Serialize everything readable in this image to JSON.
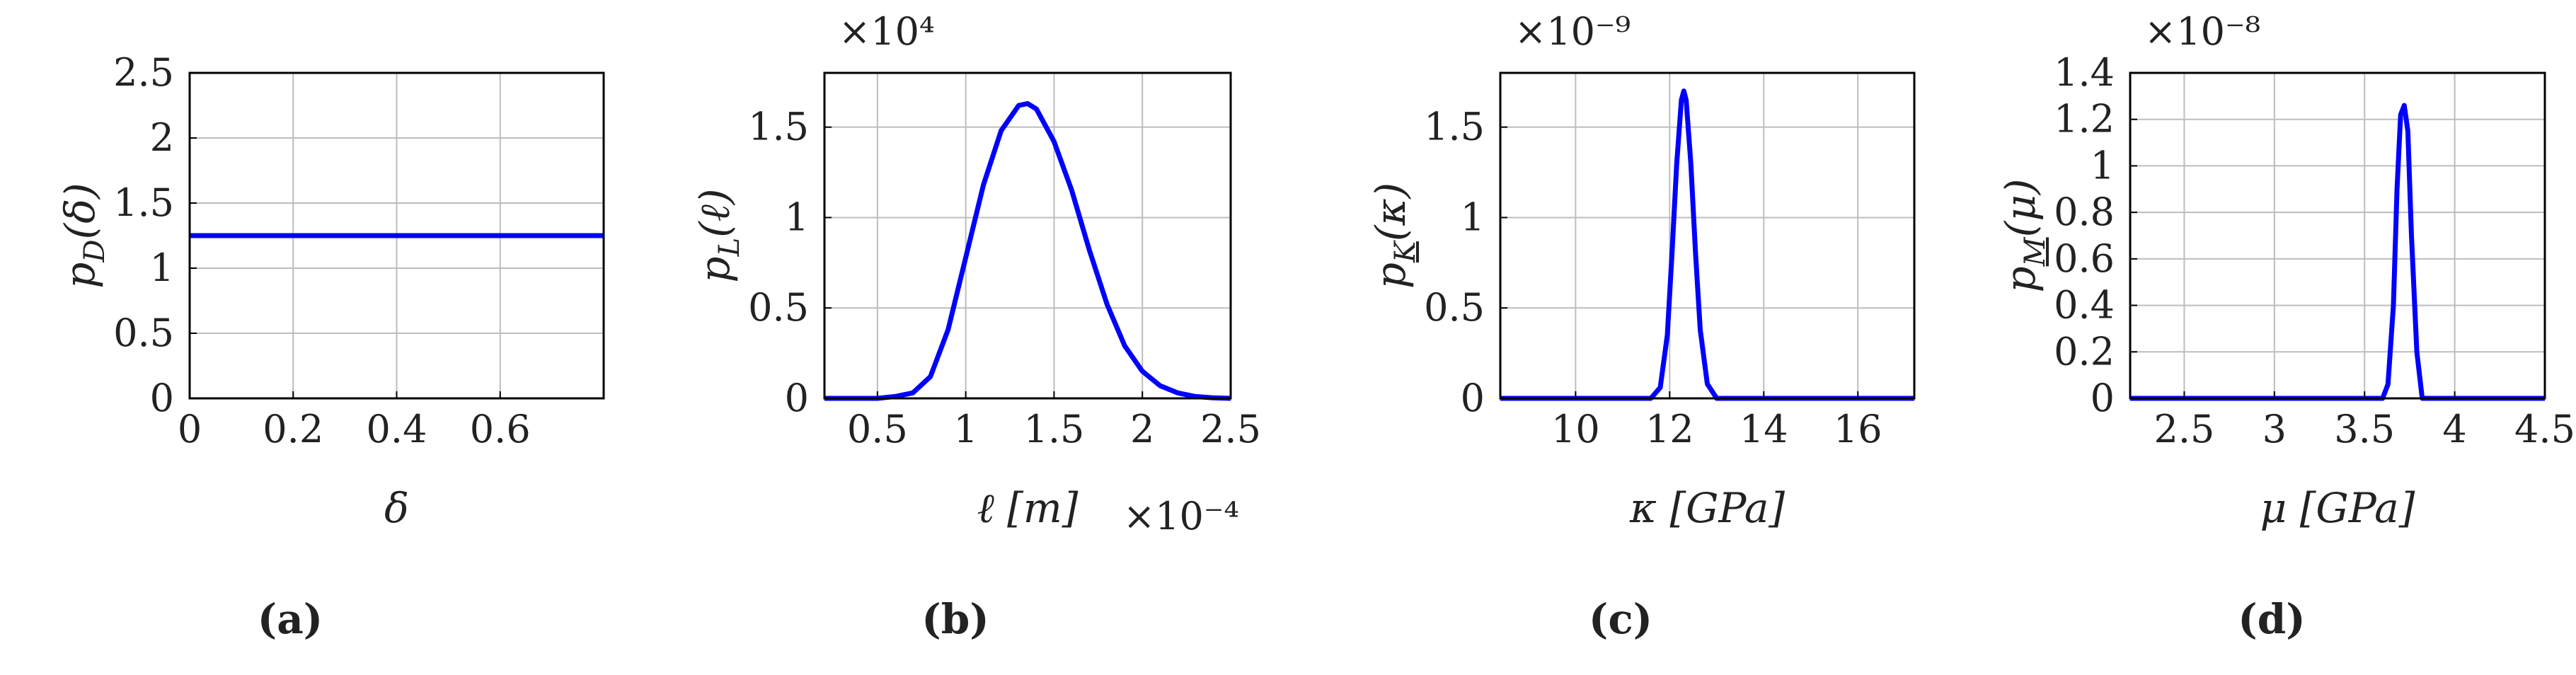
{
  "chart_data": [
    {
      "id": "a",
      "type": "line",
      "panel_label": "(a)",
      "xlabel": "δ",
      "ylabel": "p_D(δ)",
      "ylabel_main": "p",
      "ylabel_sub": "D",
      "ylabel_arg": "(δ)",
      "xlim": [
        0,
        0.8
      ],
      "ylim": [
        0,
        2.5
      ],
      "xticks": [
        0,
        0.2,
        0.4,
        0.6
      ],
      "xtick_labels": [
        "0",
        "0.2",
        "0.4",
        "0.6"
      ],
      "yticks": [
        0,
        0.5,
        1,
        1.5,
        2,
        2.5
      ],
      "ytick_labels": [
        "0",
        "0.5",
        "1",
        "1.5",
        "2",
        "2.5"
      ],
      "x_scale_label": "",
      "y_scale_label": "",
      "grid": true,
      "series": [
        {
          "color": "#0000ff",
          "x": [
            0,
            0.8
          ],
          "y": [
            1.25,
            1.25
          ]
        }
      ]
    },
    {
      "id": "b",
      "type": "line",
      "panel_label": "(b)",
      "xlabel": "ℓ [m]",
      "ylabel": "p_L(ℓ)",
      "ylabel_main": "p",
      "ylabel_sub": "L",
      "ylabel_arg": "(ℓ)",
      "xlim": [
        0.2,
        2.5
      ],
      "ylim": [
        0,
        1.8
      ],
      "xticks": [
        0.5,
        1,
        1.5,
        2,
        2.5
      ],
      "xtick_labels": [
        "0.5",
        "1",
        "1.5",
        "2",
        "2.5"
      ],
      "yticks": [
        0,
        0.5,
        1,
        1.5
      ],
      "ytick_labels": [
        "0",
        "0.5",
        "1",
        "1.5"
      ],
      "x_scale_label": "×10⁻⁴",
      "y_scale_label": "×10⁴",
      "grid": true,
      "series": [
        {
          "color": "#0000ff",
          "x": [
            0.2,
            0.5,
            0.6,
            0.7,
            0.8,
            0.9,
            1.0,
            1.1,
            1.2,
            1.3,
            1.35,
            1.4,
            1.5,
            1.6,
            1.7,
            1.8,
            1.9,
            2.0,
            2.1,
            2.2,
            2.3,
            2.4,
            2.5
          ],
          "y": [
            0,
            0.0,
            0.01,
            0.03,
            0.12,
            0.38,
            0.78,
            1.18,
            1.48,
            1.62,
            1.63,
            1.6,
            1.42,
            1.15,
            0.82,
            0.52,
            0.29,
            0.15,
            0.07,
            0.03,
            0.01,
            0.003,
            0
          ]
        }
      ]
    },
    {
      "id": "c",
      "type": "line",
      "panel_label": "(c)",
      "xlabel": "κ [GPa]",
      "ylabel": "p_K(κ)",
      "ylabel_main": "p",
      "ylabel_sub": "K",
      "ylabel_arg": "(κ)",
      "xlim": [
        8.4,
        17.2
      ],
      "ylim": [
        0,
        1.8
      ],
      "xticks": [
        10,
        12,
        14,
        16
      ],
      "xtick_labels": [
        "10",
        "12",
        "14",
        "16"
      ],
      "yticks": [
        0,
        0.5,
        1,
        1.5
      ],
      "ytick_labels": [
        "0",
        "0.5",
        "1",
        "1.5"
      ],
      "x_scale_label": "",
      "y_scale_label": "×10⁻⁹",
      "grid": true,
      "series": [
        {
          "color": "#0000ff",
          "x": [
            8.4,
            11.6,
            11.8,
            11.95,
            12.05,
            12.15,
            12.25,
            12.3,
            12.35,
            12.45,
            12.55,
            12.65,
            12.8,
            13.0,
            17.2
          ],
          "y": [
            0,
            0,
            0.06,
            0.35,
            0.8,
            1.3,
            1.65,
            1.7,
            1.65,
            1.3,
            0.8,
            0.38,
            0.08,
            0,
            0
          ]
        }
      ]
    },
    {
      "id": "d",
      "type": "line",
      "panel_label": "(d)",
      "xlabel": "μ [GPa]",
      "ylabel": "p_M(μ)",
      "ylabel_main": "p",
      "ylabel_sub": "M",
      "ylabel_arg": "(μ)",
      "xlim": [
        2.2,
        4.5
      ],
      "ylim": [
        0,
        1.4
      ],
      "xticks": [
        2.5,
        3,
        3.5,
        4,
        4.5
      ],
      "xtick_labels": [
        "2.5",
        "3",
        "3.5",
        "4",
        "4.5"
      ],
      "yticks": [
        0,
        0.2,
        0.4,
        0.6,
        0.8,
        1,
        1.2,
        1.4
      ],
      "ytick_labels": [
        "0",
        "0.2",
        "0.4",
        "0.6",
        "0.8",
        "1",
        "1.2",
        "1.4"
      ],
      "x_scale_label": "",
      "y_scale_label": "×10⁻⁸",
      "grid": true,
      "series": [
        {
          "color": "#0000ff",
          "x": [
            2.2,
            3.6,
            3.63,
            3.66,
            3.68,
            3.7,
            3.72,
            3.74,
            3.76,
            3.79,
            3.82,
            4.5
          ],
          "y": [
            0,
            0,
            0.06,
            0.4,
            0.9,
            1.22,
            1.26,
            1.15,
            0.7,
            0.2,
            0,
            0
          ]
        }
      ]
    }
  ]
}
